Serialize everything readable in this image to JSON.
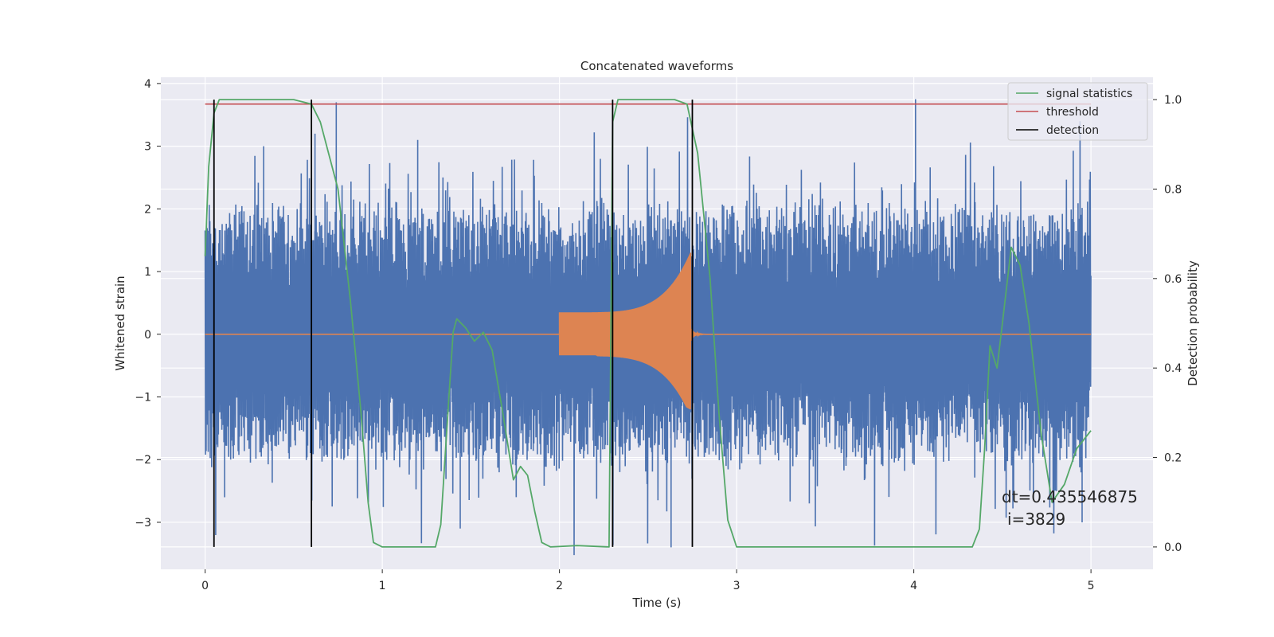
{
  "chart_data": {
    "type": "line",
    "title": "Concatenated waveforms",
    "xlabel": "Time (s)",
    "ylabel": "Whitened strain",
    "y2label": "Detection probability",
    "xlim": [
      -0.25,
      5.35
    ],
    "ylim": [
      -3.75,
      4.1
    ],
    "y2lim": [
      -0.05,
      1.05
    ],
    "x_ticks": [
      "0",
      "1",
      "2",
      "3",
      "4",
      "5"
    ],
    "y_ticks": [
      "−3",
      "−2",
      "−1",
      "0",
      "1",
      "2",
      "3",
      "4"
    ],
    "y2_ticks": [
      "0.0",
      "0.2",
      "0.4",
      "0.6",
      "0.8",
      "1.0"
    ],
    "grid": true,
    "legend_position": "top-right",
    "noise_series": {
      "x_range": [
        0,
        5
      ],
      "amplitude_typical": 1.9,
      "peak_values": [
        [
          0.74,
          3.7
        ],
        [
          0.33,
          3.0
        ],
        [
          0.62,
          3.2
        ],
        [
          1.2,
          3.1
        ],
        [
          4.01,
          3.75
        ],
        [
          2.63,
          -3.4
        ],
        [
          1.44,
          -3.1
        ],
        [
          4.95,
          -3.0
        ],
        [
          0.11,
          -2.6
        ],
        [
          3.41,
          -2.7
        ]
      ]
    },
    "chirp_series": {
      "x_range": [
        0,
        5
      ],
      "start": 2.0,
      "merger": 2.74,
      "start_amplitude": 0.35,
      "peak_amplitude": 1.3,
      "peak_min": -1.2
    },
    "signal_statistics": [
      [
        0,
        0.65
      ],
      [
        0.02,
        0.85
      ],
      [
        0.05,
        0.97
      ],
      [
        0.08,
        1.0
      ],
      [
        0.5,
        1.0
      ],
      [
        0.6,
        0.99
      ],
      [
        0.65,
        0.95
      ],
      [
        0.75,
        0.8
      ],
      [
        0.82,
        0.55
      ],
      [
        0.88,
        0.3
      ],
      [
        0.92,
        0.1
      ],
      [
        0.95,
        0.01
      ],
      [
        1.0,
        0.0
      ],
      [
        1.3,
        0.0
      ],
      [
        1.33,
        0.05
      ],
      [
        1.37,
        0.3
      ],
      [
        1.4,
        0.48
      ],
      [
        1.42,
        0.51
      ],
      [
        1.47,
        0.49
      ],
      [
        1.52,
        0.46
      ],
      [
        1.57,
        0.48
      ],
      [
        1.62,
        0.44
      ],
      [
        1.68,
        0.3
      ],
      [
        1.74,
        0.15
      ],
      [
        1.78,
        0.18
      ],
      [
        1.82,
        0.16
      ],
      [
        1.86,
        0.08
      ],
      [
        1.9,
        0.01
      ],
      [
        1.95,
        0.0
      ],
      [
        2.1,
        0.003
      ],
      [
        2.28,
        0.0
      ],
      [
        2.3,
        0.95
      ],
      [
        2.33,
        1.0
      ],
      [
        2.65,
        1.0
      ],
      [
        2.72,
        0.99
      ],
      [
        2.78,
        0.88
      ],
      [
        2.85,
        0.6
      ],
      [
        2.9,
        0.3
      ],
      [
        2.95,
        0.06
      ],
      [
        3.0,
        0.0
      ],
      [
        4.33,
        0.0
      ],
      [
        4.37,
        0.04
      ],
      [
        4.4,
        0.22
      ],
      [
        4.43,
        0.45
      ],
      [
        4.47,
        0.4
      ],
      [
        4.5,
        0.5
      ],
      [
        4.55,
        0.67
      ],
      [
        4.6,
        0.63
      ],
      [
        4.65,
        0.5
      ],
      [
        4.72,
        0.25
      ],
      [
        4.78,
        0.1
      ],
      [
        4.85,
        0.14
      ],
      [
        4.92,
        0.22
      ],
      [
        5.0,
        0.26
      ]
    ],
    "threshold": {
      "value": 0.99,
      "x_range": [
        0,
        5
      ]
    },
    "detections": [
      0.05,
      0.6,
      2.3,
      2.75
    ],
    "detection_y2_range": [
      0.0,
      1.0
    ],
    "legend": [
      "signal statistics",
      "threshold",
      "detection"
    ],
    "annotation": [
      "dt=0.435546875",
      "i=3829"
    ],
    "colors": {
      "noise": "#4c72b0",
      "chirp": "#dd8452",
      "signal_statistics": "#55a868",
      "threshold": "#c44e52",
      "detection": "#000000",
      "background": "#eaeaf2",
      "grid": "#ffffff"
    }
  }
}
